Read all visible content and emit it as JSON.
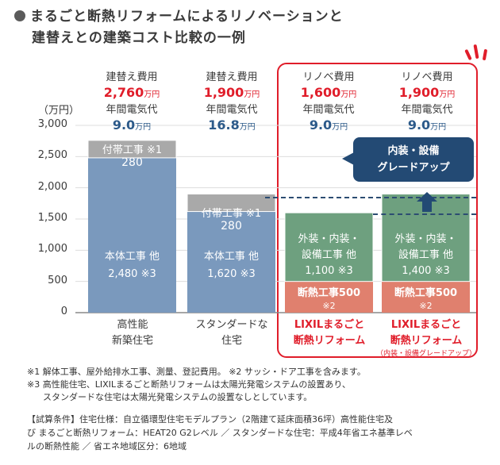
{
  "title": {
    "line1": "まるごと断熱リフォームによるリノベーションと",
    "line2": "建替えとの建築コスト比較の一例"
  },
  "axis": {
    "ylabel": "（万円）",
    "ticks": [
      "3,000",
      "2,500",
      "2,000",
      "1,500",
      "1,000",
      "500",
      "0"
    ]
  },
  "columns": [
    {
      "cost_label": "建替え費用",
      "cost_value": "2,760",
      "cost_unit": "万円",
      "elec_label": "年間電気代",
      "elec_value": "9.0",
      "elec_unit": "万円",
      "category": [
        "高性能",
        "新築住宅"
      ]
    },
    {
      "cost_label": "建替え費用",
      "cost_value": "1,900",
      "cost_unit": "万円",
      "elec_label": "年間電気代",
      "elec_value": "16.8",
      "elec_unit": "万円",
      "category": [
        "スタンダードな",
        "住宅"
      ]
    },
    {
      "cost_label": "リノベ費用",
      "cost_value": "1,600",
      "cost_unit": "万円",
      "elec_label": "年間電気代",
      "elec_value": "9.0",
      "elec_unit": "万円",
      "category": [
        "LIXILまるごと",
        "断熱リフォーム"
      ]
    },
    {
      "cost_label": "リノベ費用",
      "cost_value": "1,900",
      "cost_unit": "万円",
      "elec_label": "年間電気代",
      "elec_value": "9.0",
      "elec_unit": "万円",
      "category": [
        "LIXILまるごと",
        "断熱リフォーム"
      ],
      "sub_category": "（内装・設備グレードアップ）"
    }
  ],
  "segment_labels": {
    "c0_main": [
      "本体工事 他",
      "2,480 ※3"
    ],
    "c0_extra": [
      "付帯工事 ※1",
      "280"
    ],
    "c1_main": [
      "本体工事 他",
      "1,620 ※3"
    ],
    "c1_extra": [
      "付帯工事 ※1",
      "280"
    ],
    "c2_ins": [
      "断熱工事500",
      "※2"
    ],
    "c2_main": [
      "外装・内装・",
      "設備工事 他",
      "1,100 ※3"
    ],
    "c3_ins": [
      "断熱工事500",
      "※2"
    ],
    "c3_main": [
      "外装・内装・",
      "設備工事 他",
      "1,400 ※3"
    ]
  },
  "callout": [
    "内装・設備",
    "グレードアップ"
  ],
  "notes": [
    "※1 解体工事、屋外給排水工事、測量、登記費用。 ※2 サッシ・ドア工事を含みます。",
    "※3 高性能住宅、LIXILまるごと断熱リフォームは太陽光発電システムの設置あり、",
    "スタンダードな住宅は太陽光発電システムの設置なしとしています。"
  ],
  "conditions": [
    "【試算条件】住宅仕様：自立循環型住宅モデルプラン（2階建て延床面積36坪）高性能住宅及",
    "び まるごと断熱リフォーム：HEAT20 G2レベル ／ スタンダードな住宅：平成4年省エネ基準レベ",
    "ルの断熱性能 ／ 省エネ地域区分：6地域"
  ],
  "colors": {
    "blue": "#7a99bd",
    "gray": "#a9a9a9",
    "green": "#6ea07f",
    "salmon": "#e0806e",
    "red": "#e01d2a",
    "navy": "#234a74"
  },
  "chart_data": {
    "type": "bar",
    "stacked": true,
    "ylabel": "（万円）",
    "ylim": [
      0,
      3000
    ],
    "yticks": [
      0,
      500,
      1000,
      1500,
      2000,
      2500,
      3000
    ],
    "categories": [
      "高性能 新築住宅",
      "スタンダードな 住宅",
      "LIXILまるごと 断熱リフォーム",
      "LIXILまるごと 断熱リフォーム（内装・設備グレードアップ）"
    ],
    "series": [
      {
        "name": "本体工事 他",
        "values": [
          2480,
          1620,
          null,
          null
        ]
      },
      {
        "name": "付帯工事",
        "values": [
          280,
          280,
          null,
          null
        ]
      },
      {
        "name": "断熱工事",
        "values": [
          null,
          null,
          500,
          500
        ]
      },
      {
        "name": "外装・内装・設備工事 他",
        "values": [
          null,
          null,
          1100,
          1400
        ]
      }
    ],
    "totals": [
      2760,
      1900,
      1600,
      1900
    ],
    "annual_electricity": [
      9.0,
      16.8,
      9.0,
      9.0
    ]
  }
}
